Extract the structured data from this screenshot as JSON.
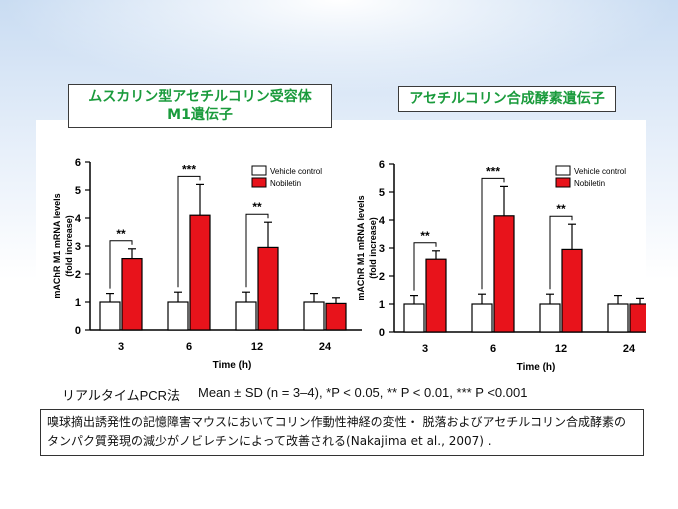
{
  "titles": {
    "left_line1": "ムスカリン型アセチルコリン受容体",
    "left_line2": "M1遺伝子",
    "right": "アセチルコリン合成酵素遺伝子"
  },
  "method": "リアルタイムPCR法",
  "stats": "Mean ± SD (n = 3–4), *P < 0.05, ** P < 0.01, *** P <0.001",
  "note": "嗅球摘出誘発性の記憶障害マウスにおいてコリン作動性神経の変性・ 脱落およびアセチルコリン合成酵素のタンパク質発現の減少がノビレチンによって改善される(Nakajima et al., 2007) .",
  "colors": {
    "vehicle": "#ffffff",
    "nobiletin": "#e8131b",
    "title_green": "#1a9b3c"
  },
  "chart_data": [
    {
      "type": "bar",
      "xlabel": "Time (h)",
      "ylabel": [
        "mAChR M1 mRNA levels",
        "(fold increase)"
      ],
      "ylim": [
        0,
        6
      ],
      "yticks": [
        "0",
        "1",
        "2",
        "3",
        "4",
        "5",
        "6"
      ],
      "categories": [
        "3",
        "6",
        "12",
        "24"
      ],
      "legend_position": "top-right",
      "series": [
        {
          "name": "Vehicle control",
          "values": [
            1.0,
            1.0,
            1.0,
            1.0
          ],
          "errors": [
            0.3,
            0.35,
            0.35,
            0.3
          ]
        },
        {
          "name": "Nobiletin",
          "values": [
            2.55,
            4.1,
            2.95,
            0.95
          ],
          "errors": [
            0.35,
            1.1,
            0.9,
            0.2
          ]
        }
      ],
      "significance": [
        "**",
        "***",
        "**",
        ""
      ]
    },
    {
      "type": "bar",
      "xlabel": "Time (h)",
      "ylabel": [
        "mAChR M1 mRNA levels",
        "(fold increase)"
      ],
      "ylim": [
        0,
        6
      ],
      "yticks": [
        "0",
        "1",
        "2",
        "3",
        "4",
        "5",
        "6"
      ],
      "categories": [
        "3",
        "6",
        "12",
        "24"
      ],
      "legend_position": "top-right",
      "series": [
        {
          "name": "Vehicle control",
          "values": [
            1.0,
            1.0,
            1.0,
            1.0
          ],
          "errors": [
            0.3,
            0.35,
            0.35,
            0.3
          ]
        },
        {
          "name": "Nobiletin",
          "values": [
            2.6,
            4.15,
            2.95,
            1.0
          ],
          "errors": [
            0.3,
            1.05,
            0.9,
            0.2
          ]
        }
      ],
      "significance": [
        "**",
        "***",
        "**",
        ""
      ]
    }
  ]
}
